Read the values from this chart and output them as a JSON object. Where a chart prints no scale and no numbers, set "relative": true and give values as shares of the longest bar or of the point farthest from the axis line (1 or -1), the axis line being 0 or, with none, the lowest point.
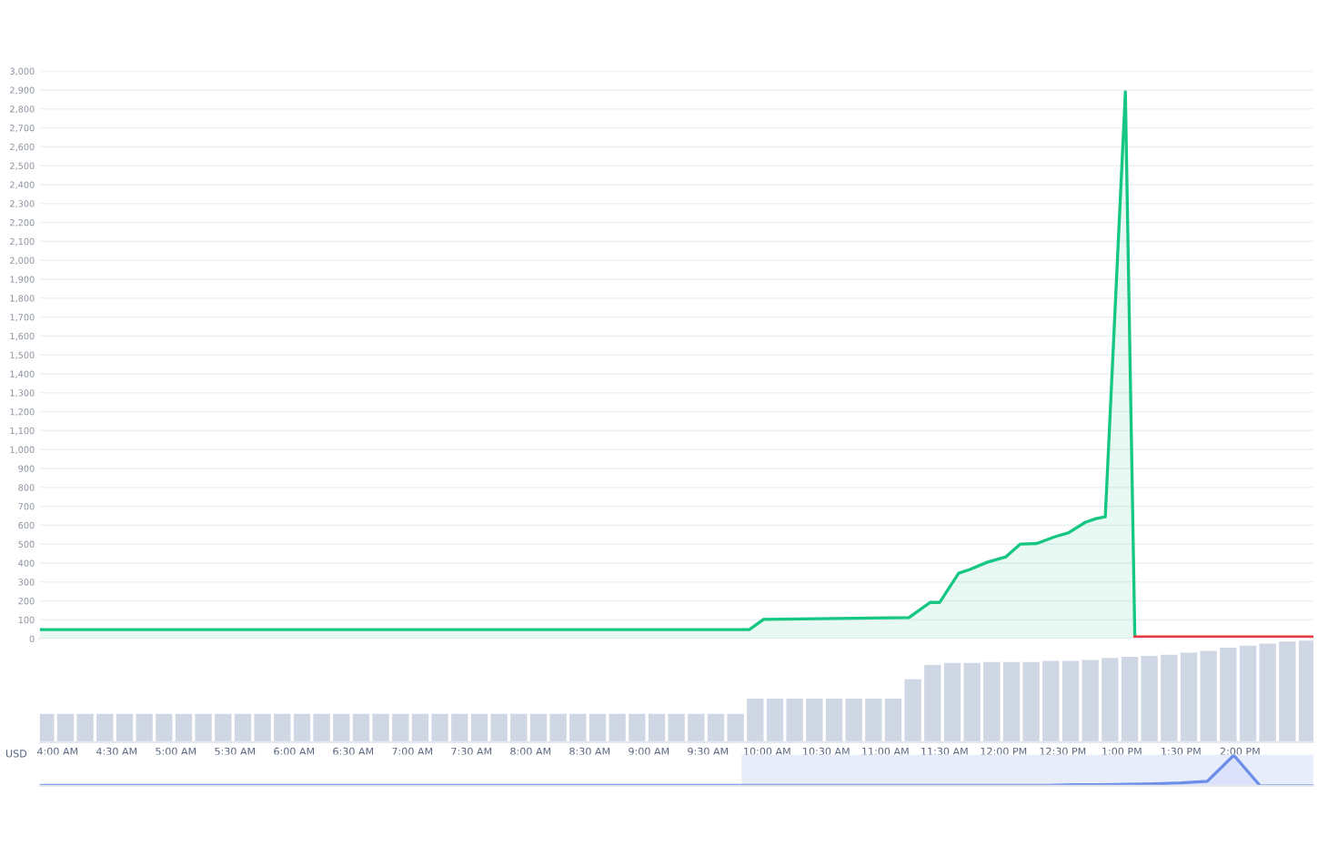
{
  "chart_data": [
    {
      "type": "line",
      "xlim": [
        3.85,
        14.62
      ],
      "ylim": [
        0,
        3000
      ],
      "yticks": [
        0,
        100,
        200,
        300,
        400,
        500,
        600,
        700,
        800,
        900,
        {
          "value": 1000,
          "label": "1,000"
        },
        {
          "value": 1100,
          "label": "1,100"
        },
        {
          "value": 1200,
          "label": "1,200"
        },
        {
          "value": 1300,
          "label": "1,300"
        },
        {
          "value": 1400,
          "label": "1,400"
        },
        {
          "value": 1500,
          "label": "1,500"
        },
        {
          "value": 1600,
          "label": "1,600"
        },
        {
          "value": 1700,
          "label": "1,700"
        },
        {
          "value": 1800,
          "label": "1,800"
        },
        {
          "value": 1900,
          "label": "1,900"
        },
        {
          "value": 2000,
          "label": "2,000"
        },
        {
          "value": 2100,
          "label": "2,100"
        },
        {
          "value": 2200,
          "label": "2,200"
        },
        {
          "value": 2300,
          "label": "2,300"
        },
        {
          "value": 2400,
          "label": "2,400"
        },
        {
          "value": 2500,
          "label": "2,500"
        },
        {
          "value": 2600,
          "label": "2,600"
        },
        {
          "value": 2700,
          "label": "2,700"
        },
        {
          "value": 2800,
          "label": "2,800"
        },
        {
          "value": 2900,
          "label": "2,900"
        },
        {
          "value": 3000,
          "label": "3,000"
        }
      ],
      "grid": "y",
      "tick_labels": "y",
      "series": [
        {
          "type": "area",
          "color": "#16c784",
          "x": [
            3.85,
            9.85,
            9.97,
            11.2,
            11.38,
            11.46,
            11.62,
            11.71,
            11.86,
            12.02,
            12.14,
            12.28,
            12.43,
            12.55,
            12.69,
            12.78,
            12.86,
            13.03,
            13.11
          ],
          "values": [
            48,
            48,
            102,
            112,
            192,
            192,
            346,
            365,
            404,
            433,
            500,
            503,
            538,
            560,
            615,
            635,
            644,
            2890,
            10
          ]
        },
        {
          "type": "line",
          "color": "#ea3943",
          "x": [
            13.11,
            14.62
          ],
          "values": [
            10,
            10
          ]
        }
      ]
    },
    {
      "type": "bar",
      "relative": true,
      "color": "#cfd6e4",
      "xlim": [
        3.85,
        14.62
      ],
      "tick_labels": "x",
      "xticks": [
        {
          "value": 4,
          "label": "4:00 AM"
        },
        {
          "value": 4.5,
          "label": "4:30 AM"
        },
        {
          "value": 5,
          "label": "5:00 AM"
        },
        {
          "value": 5.5,
          "label": "5:30 AM"
        },
        {
          "value": 6,
          "label": "6:00 AM"
        },
        {
          "value": 6.5,
          "label": "6:30 AM"
        },
        {
          "value": 7,
          "label": "7:00 AM"
        },
        {
          "value": 7.5,
          "label": "7:30 AM"
        },
        {
          "value": 8,
          "label": "8:00 AM"
        },
        {
          "value": 8.5,
          "label": "8:30 AM"
        },
        {
          "value": 9,
          "label": "9:00 AM"
        },
        {
          "value": 9.5,
          "label": "9:30 AM"
        },
        {
          "value": 10,
          "label": "10:00 AM"
        },
        {
          "value": 10.5,
          "label": "10:30 AM"
        },
        {
          "value": 11,
          "label": "11:00 AM"
        },
        {
          "value": 11.5,
          "label": "11:30 AM"
        },
        {
          "value": 12,
          "label": "12:00 PM"
        },
        {
          "value": 12.5,
          "label": "12:30 PM"
        },
        {
          "value": 13,
          "label": "1:00 PM"
        },
        {
          "value": 13.5,
          "label": "1:30 PM"
        },
        {
          "value": 14,
          "label": "2:00 PM"
        }
      ],
      "annotations": [
        "USD"
      ],
      "x": [
        3.9,
        4.067,
        4.233,
        4.4,
        4.567,
        4.733,
        4.9,
        5.067,
        5.233,
        5.4,
        5.567,
        5.733,
        5.9,
        6.067,
        6.233,
        6.4,
        6.567,
        6.733,
        6.9,
        7.067,
        7.233,
        7.4,
        7.567,
        7.733,
        7.9,
        8.067,
        8.233,
        8.4,
        8.567,
        8.733,
        8.9,
        9.067,
        9.233,
        9.4,
        9.567,
        9.733,
        9.9,
        10.067,
        10.233,
        10.4,
        10.567,
        10.733,
        10.9,
        11.067,
        11.233,
        11.4,
        11.567,
        11.733,
        11.9,
        12.067,
        12.233,
        12.4,
        12.567,
        12.733,
        12.9,
        13.067,
        13.233,
        13.4,
        13.567,
        13.733,
        13.9,
        14.067,
        14.233,
        14.4,
        14.567
      ],
      "values": [
        0.28,
        0.28,
        0.28,
        0.28,
        0.28,
        0.28,
        0.28,
        0.28,
        0.28,
        0.28,
        0.28,
        0.28,
        0.28,
        0.28,
        0.28,
        0.28,
        0.28,
        0.28,
        0.28,
        0.28,
        0.28,
        0.28,
        0.28,
        0.28,
        0.28,
        0.28,
        0.28,
        0.28,
        0.28,
        0.28,
        0.28,
        0.28,
        0.28,
        0.28,
        0.28,
        0.28,
        0.43,
        0.43,
        0.43,
        0.43,
        0.43,
        0.43,
        0.43,
        0.43,
        0.62,
        0.76,
        0.78,
        0.78,
        0.79,
        0.79,
        0.79,
        0.8,
        0.8,
        0.81,
        0.83,
        0.84,
        0.85,
        0.86,
        0.88,
        0.9,
        0.93,
        0.95,
        0.97,
        0.99,
        1.0
      ]
    },
    {
      "type": "area",
      "relative": true,
      "color": "#6c8ee8",
      "tick_labels": false,
      "categories": [
        null,
        null,
        null,
        null,
        null,
        null,
        null,
        null,
        null,
        null,
        null,
        null,
        null,
        null,
        null,
        null,
        null,
        null,
        null,
        null,
        null,
        null,
        null,
        null,
        null,
        null,
        null,
        null,
        null,
        null,
        null,
        null,
        null,
        null,
        null,
        null,
        null,
        null,
        null,
        null,
        null,
        null,
        null,
        null,
        null,
        null,
        null,
        null,
        null
      ],
      "values": [
        0.02,
        0.02,
        0.02,
        0.02,
        0.02,
        0.02,
        0.02,
        0.02,
        0.02,
        0.02,
        0.02,
        0.02,
        0.02,
        0.02,
        0.02,
        0.02,
        0.02,
        0.02,
        0.02,
        0.02,
        0.02,
        0.02,
        0.02,
        0.02,
        0.02,
        0.02,
        0.02,
        0.02,
        0.02,
        0.02,
        0.02,
        0.02,
        0.02,
        0.02,
        0.02,
        0.02,
        0.02,
        0.02,
        0.02,
        0.04,
        0.04,
        0.05,
        0.07,
        0.1,
        0.15,
        1,
        0,
        0,
        0
      ]
    }
  ]
}
